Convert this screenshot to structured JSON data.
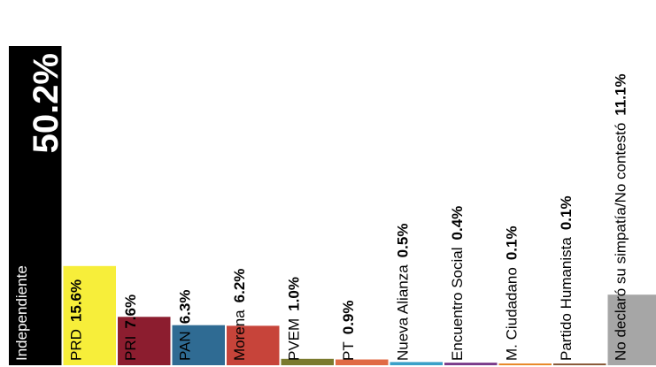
{
  "chart_data": {
    "type": "bar",
    "title": "",
    "xlabel": "",
    "ylabel": "",
    "ylim": [
      0,
      50.2
    ],
    "grid": false,
    "legend": "none",
    "categories": [
      "Independiente",
      "PRD",
      "PRI",
      "PAN",
      "Morena",
      "PVEM",
      "PT",
      "Nueva Alianza",
      "Encuentro Social",
      "M. Ciudadano",
      "Partido Humanista",
      "No declaró su simpatía/No contestó"
    ],
    "values": [
      50.2,
      15.6,
      7.6,
      6.3,
      6.2,
      1.0,
      0.9,
      0.5,
      0.4,
      0.1,
      0.1,
      11.1
    ],
    "value_labels": [
      "50.2%",
      "15.6%",
      "7.6%",
      "6.3%",
      "6.2%",
      "1.0%",
      "0.9%",
      "0.5%",
      "0.4%",
      "0.1%",
      "0.1%",
      "11.1%"
    ],
    "colors": [
      "#000000",
      "#f7ee3a",
      "#8c1d2f",
      "#2f6b93",
      "#c7443a",
      "#7a7a2e",
      "#e06a45",
      "#3aa0c8",
      "#7a3a8a",
      "#e8892b",
      "#8a5a3a",
      "#a6a6a6"
    ]
  }
}
